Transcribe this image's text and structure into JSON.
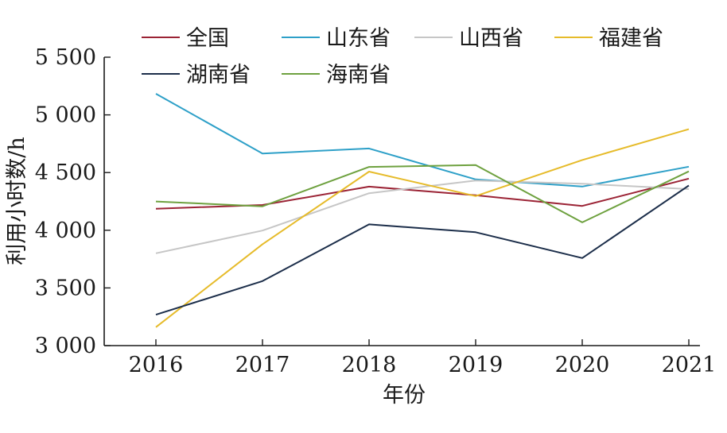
{
  "chart_data": {
    "type": "line",
    "title": "",
    "xlabel": "年份",
    "ylabel": "利用小时数/h",
    "x": [
      "2016",
      "2017",
      "2018",
      "2019",
      "2020",
      "2021"
    ],
    "ylim": [
      3000,
      5500
    ],
    "yticks": [
      3000,
      3500,
      4000,
      4500,
      5000,
      5500
    ],
    "ytick_labels": [
      "3 000",
      "3 500",
      "4 000",
      "4 500",
      "5 000",
      "5 500"
    ],
    "grid": false,
    "legend_position": "top",
    "series": [
      {
        "name": "全国",
        "color": "#9b2335",
        "values": [
          4186,
          4219,
          4378,
          4303,
          4211,
          4448
        ]
      },
      {
        "name": "山东省",
        "color": "#2ea0c8",
        "values": [
          5183,
          4665,
          4709,
          4441,
          4379,
          4551
        ]
      },
      {
        "name": "山西省",
        "color": "#c6c6c6",
        "values": [
          3800,
          3997,
          4321,
          4431,
          4403,
          4357
        ]
      },
      {
        "name": "福建省",
        "color": "#e6bb2a",
        "values": [
          3160,
          3879,
          4508,
          4296,
          4609,
          4876
        ]
      },
      {
        "name": "湖南省",
        "color": "#1c2e4a",
        "values": [
          3268,
          3559,
          4051,
          3983,
          3759,
          4388
        ]
      },
      {
        "name": "海南省",
        "color": "#6ea13f",
        "values": [
          4249,
          4207,
          4549,
          4565,
          4068,
          4510
        ]
      }
    ]
  }
}
